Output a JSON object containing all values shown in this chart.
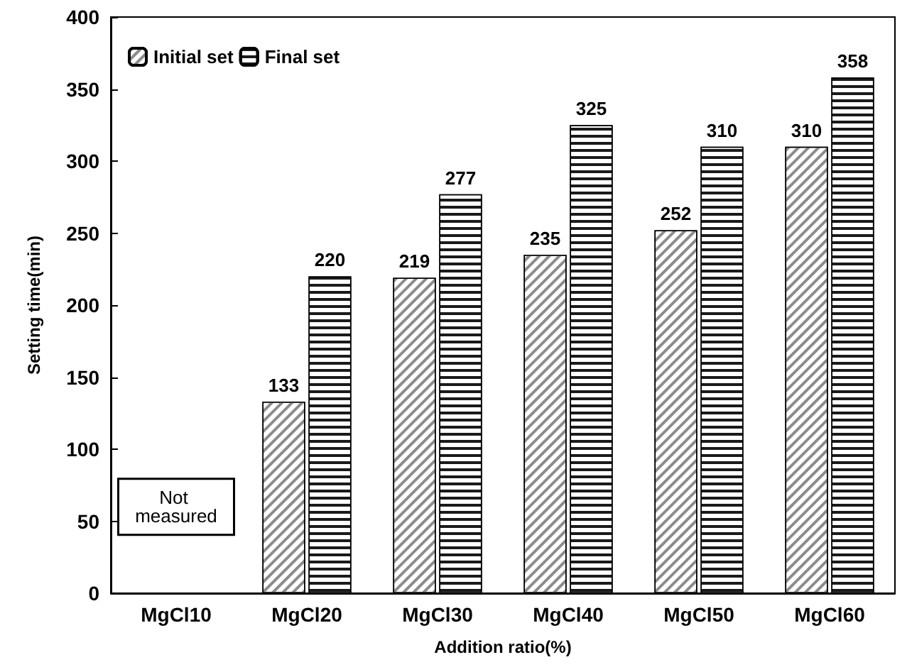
{
  "chart_data": {
    "type": "bar",
    "xlabel": "Addition ratio(%)",
    "ylabel": "Setting time(min)",
    "categories": [
      "MgCl10",
      "MgCl20",
      "MgCl30",
      "MgCl40",
      "MgCl50",
      "MgCl60"
    ],
    "series": [
      {
        "name": "Initial set",
        "color": "#ffffff",
        "values": [
          null,
          133,
          219,
          235,
          252,
          310
        ]
      },
      {
        "name": "Final set",
        "color": "#ffffff",
        "values": [
          null,
          220,
          277,
          325,
          310,
          358
        ]
      }
    ],
    "ylim": [
      0,
      400
    ],
    "yticks": [
      0,
      50,
      100,
      150,
      200,
      250,
      300,
      350,
      400
    ],
    "data_labels": true,
    "grid": false,
    "legend": "top left",
    "annotations": [
      "Not measured"
    ]
  }
}
